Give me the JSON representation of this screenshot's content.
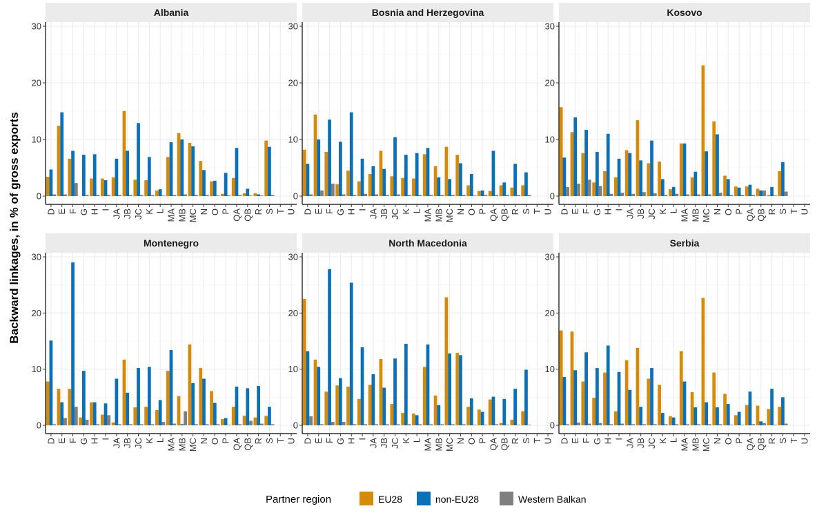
{
  "chart_data": {
    "type": "bar",
    "ylabel": "Backward linkages, in % of gross exports",
    "xlabel": "",
    "ylim": [
      0,
      30
    ],
    "yticks": [
      0,
      10,
      20,
      30
    ],
    "grid": true,
    "legend": {
      "title": "Partner region",
      "placement": "bottom"
    },
    "series_meta": [
      {
        "name": "EU28",
        "color": "#D68A0A"
      },
      {
        "name": "non-EU28",
        "color": "#0A70B8"
      },
      {
        "name": "Western Balkan",
        "color": "#7F7F7F"
      }
    ],
    "categories": [
      "D",
      "E",
      "F",
      "G",
      "H",
      "I",
      "JA",
      "JB",
      "JC",
      "K",
      "L",
      "MA",
      "MB",
      "MC",
      "N",
      "O",
      "P",
      "QA",
      "QB",
      "R",
      "S",
      "T",
      "U"
    ],
    "panels": [
      {
        "title": "Albania",
        "series": [
          {
            "name": "EU28",
            "values": [
              3.4,
              12.4,
              6.6,
              0,
              3.1,
              3.1,
              3.3,
              15.0,
              2.9,
              2.8,
              1.0,
              6.9,
              11.1,
              9.4,
              6.2,
              2.6,
              0.4,
              3.2,
              0.5,
              0.5,
              9.8,
              0,
              0
            ]
          },
          {
            "name": "non-EU28",
            "values": [
              4.7,
              14.8,
              8.0,
              7.3,
              7.4,
              2.8,
              6.6,
              8.0,
              12.9,
              6.9,
              1.2,
              9.5,
              10.0,
              8.8,
              4.6,
              2.7,
              4.1,
              8.5,
              1.3,
              0.3,
              8.7,
              0,
              0
            ]
          },
          {
            "name": "Western Balkan",
            "values": [
              0.3,
              0.3,
              2.3,
              0.2,
              0.2,
              0.2,
              0.2,
              0.2,
              0.2,
              0.2,
              0.1,
              0.2,
              0.3,
              0.2,
              0.2,
              0.1,
              0.1,
              0.2,
              0.1,
              0.1,
              0.2,
              0,
              0
            ]
          }
        ]
      },
      {
        "title": "Bosnia and Herzegovina",
        "series": [
          {
            "name": "EU28",
            "values": [
              8.2,
              14.4,
              7.8,
              2.1,
              4.5,
              2.6,
              3.9,
              8.0,
              3.5,
              3.2,
              3.1,
              7.4,
              5.3,
              8.7,
              7.3,
              1.9,
              0.9,
              0.9,
              1.9,
              1.5,
              1.9,
              0,
              0
            ]
          },
          {
            "name": "non-EU28",
            "values": [
              5.7,
              10.0,
              13.5,
              9.6,
              14.8,
              6.6,
              5.3,
              4.8,
              10.4,
              7.3,
              7.6,
              8.5,
              3.3,
              3.0,
              5.8,
              3.9,
              1.0,
              8.0,
              2.4,
              5.7,
              4.2,
              0,
              0
            ]
          },
          {
            "name": "Western Balkan",
            "values": [
              0.3,
              1.0,
              2.2,
              0.3,
              0.2,
              0.4,
              0.3,
              0.2,
              0.3,
              0.2,
              0.2,
              0.2,
              0.2,
              0.2,
              0.2,
              0.1,
              0.2,
              0.2,
              0.2,
              0.2,
              0.2,
              0,
              0
            ]
          }
        ]
      },
      {
        "title": "Kosovo",
        "series": [
          {
            "name": "EU28",
            "values": [
              15.7,
              11.3,
              7.6,
              2.4,
              4.4,
              3.3,
              8.1,
              13.4,
              5.8,
              6.1,
              1.2,
              9.3,
              3.3,
              23.1,
              13.2,
              3.6,
              1.7,
              1.7,
              1.3,
              0.2,
              4.4,
              0,
              0
            ]
          },
          {
            "name": "non-EU28",
            "values": [
              6.8,
              13.9,
              11.7,
              7.8,
              11.0,
              6.6,
              7.6,
              6.3,
              9.8,
              3.0,
              1.6,
              9.3,
              4.3,
              7.9,
              10.9,
              3.0,
              1.5,
              2.0,
              1.0,
              1.6,
              6.0,
              0,
              0
            ]
          },
          {
            "name": "Western Balkan",
            "values": [
              1.6,
              2.2,
              2.9,
              1.8,
              0.4,
              0.6,
              0.4,
              0.7,
              0.5,
              0.2,
              0.4,
              0.3,
              0.3,
              0.3,
              0.6,
              0.2,
              0.2,
              0.2,
              1.0,
              0.1,
              0.8,
              0,
              0
            ]
          }
        ]
      },
      {
        "title": "Montenegro",
        "series": [
          {
            "name": "EU28",
            "values": [
              7.8,
              6.5,
              6.5,
              1.4,
              4.1,
              1.9,
              0.5,
              11.7,
              3.2,
              3.3,
              2.7,
              9.7,
              5.2,
              14.4,
              10.2,
              6.1,
              1.1,
              3.3,
              1.7,
              1.4,
              1.7,
              0,
              0
            ]
          },
          {
            "name": "non-EU28",
            "values": [
              15.1,
              4.1,
              29.0,
              9.7,
              4.1,
              3.9,
              8.3,
              5.8,
              10.2,
              10.4,
              4.5,
              13.4,
              0.2,
              7.5,
              8.3,
              4.0,
              1.3,
              6.9,
              6.6,
              7.0,
              3.3,
              0,
              0
            ]
          },
          {
            "name": "Western Balkan",
            "values": [
              0.2,
              1.3,
              3.3,
              1.0,
              0.2,
              1.8,
              0.2,
              0.2,
              0.2,
              0.2,
              0.6,
              0.3,
              2.5,
              0.2,
              0.2,
              0.2,
              0.1,
              0.2,
              0.8,
              0.3,
              0.2,
              0,
              0
            ]
          }
        ]
      },
      {
        "title": "North Macedonia",
        "series": [
          {
            "name": "EU28",
            "values": [
              22.5,
              11.7,
              6.0,
              7.1,
              6.9,
              4.7,
              7.2,
              11.8,
              3.8,
              2.2,
              2.1,
              10.4,
              5.3,
              22.8,
              12.9,
              3.3,
              2.8,
              4.6,
              0.4,
              1.0,
              2.5,
              0,
              0
            ]
          },
          {
            "name": "non-EU28",
            "values": [
              13.2,
              10.4,
              27.8,
              8.4,
              25.4,
              13.9,
              9.1,
              6.7,
              11.9,
              14.5,
              1.8,
              14.4,
              3.6,
              12.8,
              12.5,
              4.8,
              2.4,
              5.1,
              4.7,
              6.5,
              9.9,
              0,
              0
            ]
          },
          {
            "name": "Western Balkan",
            "values": [
              1.6,
              0.2,
              0.6,
              0.6,
              0.2,
              0.2,
              0.2,
              0.2,
              0.2,
              0.2,
              0.2,
              0.2,
              0.2,
              0.2,
              0.2,
              0.1,
              0.1,
              0.2,
              0.1,
              0.1,
              0.1,
              0,
              0
            ]
          }
        ]
      },
      {
        "title": "Serbia",
        "series": [
          {
            "name": "EU28",
            "values": [
              16.9,
              16.7,
              7.8,
              4.9,
              9.4,
              2.5,
              11.6,
              13.8,
              8.3,
              7.2,
              1.6,
              13.2,
              5.9,
              22.7,
              9.4,
              5.6,
              1.8,
              3.6,
              3.5,
              2.9,
              3.3,
              0,
              0
            ]
          },
          {
            "name": "non-EU28",
            "values": [
              8.6,
              9.8,
              13.0,
              10.2,
              14.2,
              9.5,
              6.3,
              3.3,
              10.2,
              2.2,
              1.4,
              7.8,
              3.2,
              4.1,
              3.2,
              3.8,
              2.4,
              6.0,
              0.7,
              6.5,
              5.0,
              0,
              0
            ]
          },
          {
            "name": "Western Balkan",
            "values": [
              0.2,
              0.5,
              0.3,
              0.4,
              0.2,
              0.3,
              0.2,
              0.2,
              0.2,
              0.2,
              0.2,
              0.2,
              0.2,
              0.2,
              0.2,
              0.1,
              0.1,
              0.2,
              0.4,
              0.1,
              0.3,
              0,
              0
            ]
          }
        ]
      }
    ]
  }
}
